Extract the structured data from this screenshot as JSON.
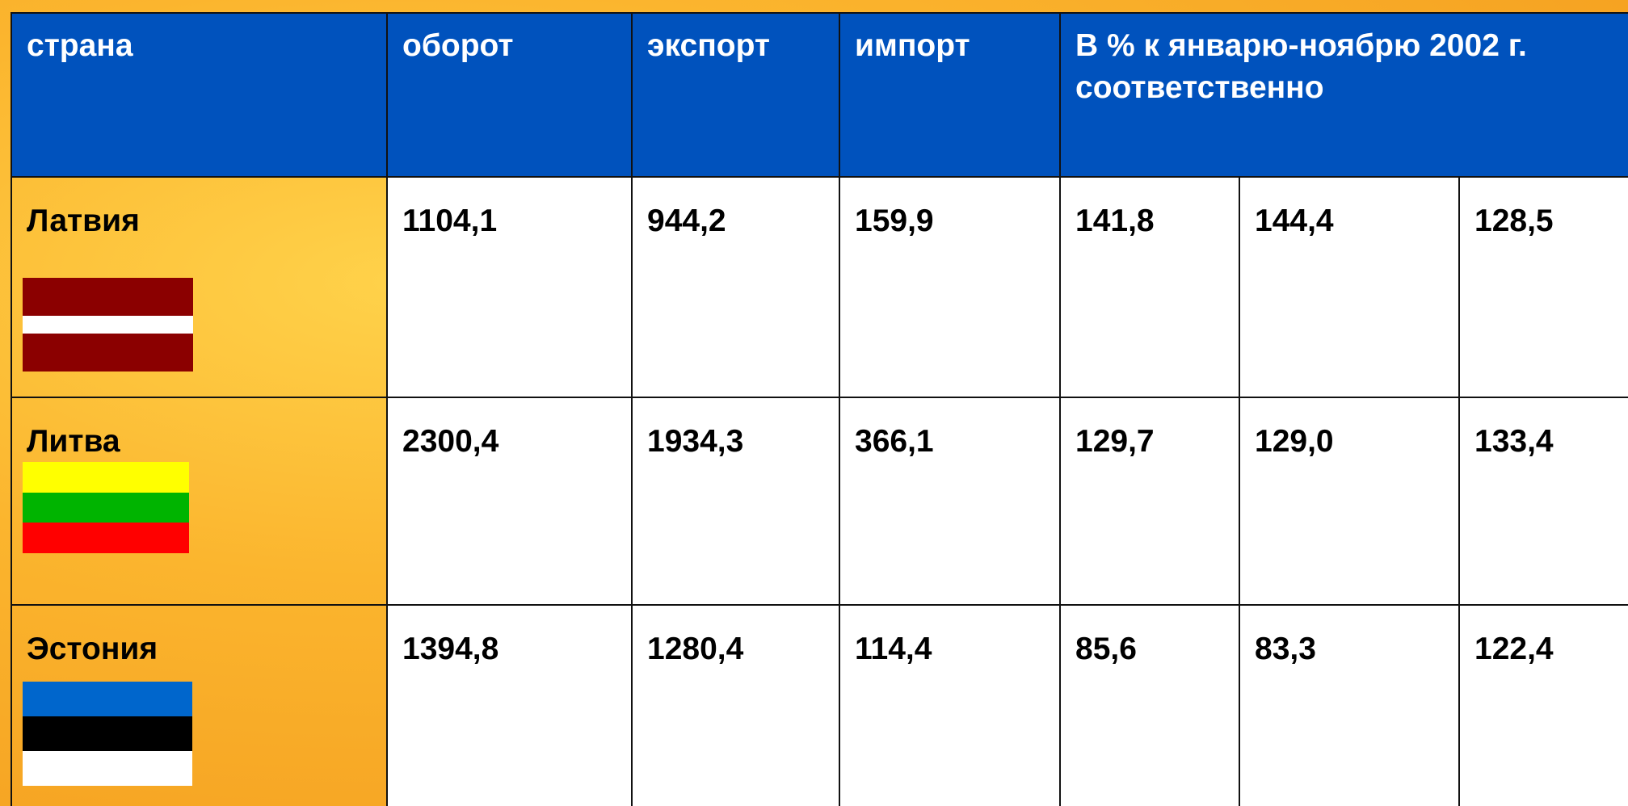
{
  "table": {
    "header": [
      "страна",
      "оборот",
      "экспорт",
      "импорт",
      "В % к январю-ноябрю 2002 г. соответственно"
    ],
    "rows": [
      {
        "country": "Латвия",
        "values": [
          "1104,1",
          "944,2",
          "159,9",
          "141,8",
          "144,4",
          "128,5"
        ]
      },
      {
        "country": "Литва",
        "values": [
          "2300,4",
          "1934,3",
          "366,1",
          "129,7",
          "129,0",
          "133,4"
        ]
      },
      {
        "country": "Эстония",
        "values": [
          "1394,8",
          "1280,4",
          "114,4",
          "85,6",
          "83,3",
          "122,4"
        ]
      }
    ]
  }
}
